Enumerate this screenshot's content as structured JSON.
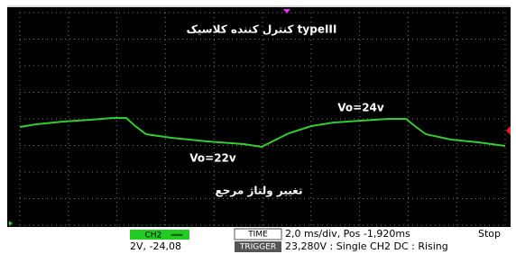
{
  "screen": {
    "title": "کنترل کننده کلاسیک typeIII",
    "annotations": [
      "Vo=24v",
      "Vo=22v",
      "تغییر ولتاژ مرجع"
    ]
  },
  "status": {
    "channel": {
      "badge": "CH2",
      "symbol": "═══",
      "setting": "2V, -24,08"
    },
    "time": {
      "label": "TIME",
      "value": "2,0 ms/div, Pos -1,920ms"
    },
    "trigger": {
      "label": "TRIGGER",
      "value": "23,280V : Single CH2 DC : Rising"
    },
    "state": "Stop"
  }
}
